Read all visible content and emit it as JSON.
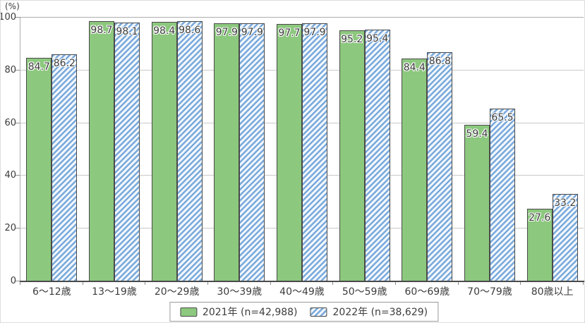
{
  "colors": {
    "green_fill": "#8CC87E",
    "hatch_stripe": "#79A9DB",
    "hatch_bg": "#F2F7FC",
    "bar_border": "#4A4A4A",
    "gridline": "#C9C9C9",
    "top_line": "#ADADAD",
    "left_axis": "#ADADAD",
    "bottom_axis": "#4A4A4A",
    "tick": "#8F8F8F",
    "text": "#3C3C3C",
    "value_label_text": "#3A3A3A",
    "legend_border": "#9A9A9A"
  },
  "chart_data": {
    "type": "bar",
    "title": "",
    "xlabel": "",
    "ylabel": "(%)",
    "ylim": [
      0,
      100
    ],
    "yticks": [
      0,
      20,
      40,
      60,
      80,
      100
    ],
    "grid": true,
    "legend_position": "bottom",
    "categories": [
      "6〜12歳",
      "13〜19歳",
      "20〜29歳",
      "30〜39歳",
      "40〜49歳",
      "50〜59歳",
      "60〜69歳",
      "70〜79歳",
      "80歳以上"
    ],
    "series": [
      {
        "name": "2021年",
        "legend_label": "2021年 (n=42,988)",
        "style": "solid",
        "values": [
          84.7,
          98.7,
          98.4,
          97.9,
          97.7,
          95.2,
          84.4,
          59.4,
          27.6
        ]
      },
      {
        "name": "2022年",
        "legend_label": "2022年 (n=38,629)",
        "style": "hatched",
        "values": [
          86.2,
          98.1,
          98.6,
          97.9,
          97.9,
          95.4,
          86.8,
          65.5,
          33.2
        ]
      }
    ]
  }
}
